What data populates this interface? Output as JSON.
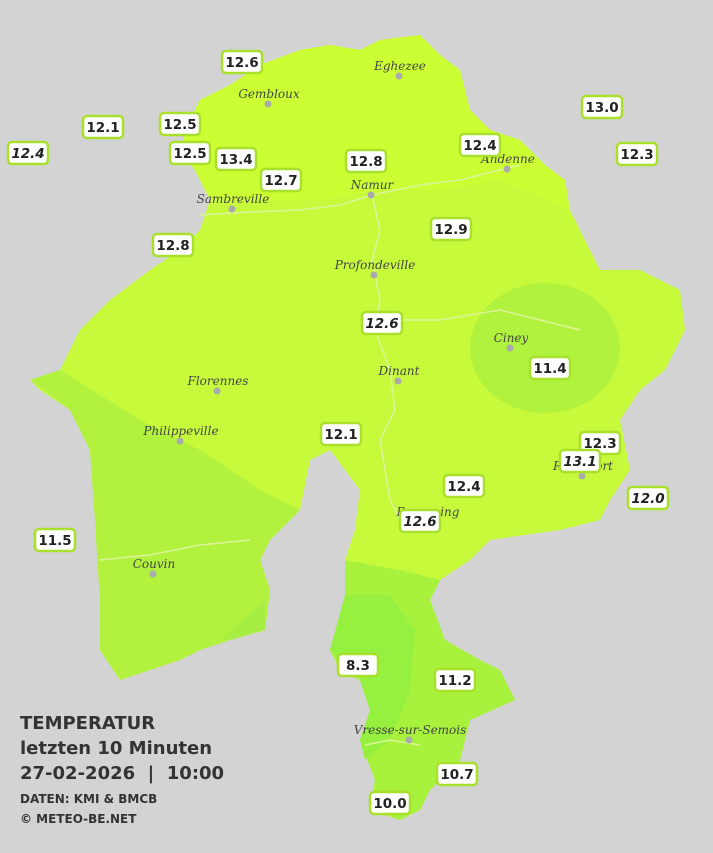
{
  "legend": {
    "title": "TEMPERATUR",
    "period": "letzten 10 Minuten",
    "datetime": "27-02-2026  |  10:00",
    "source": "DATEN: KMI & BMCB",
    "copyright": "© METEO-BE.NET"
  },
  "towns": [
    "Eghezee",
    "Gembloux",
    "Andenne",
    "Namur",
    "Sambreville",
    "Profondeville",
    "Ciney",
    "Florennes",
    "Dinant",
    "Philippeville",
    "Rochefort",
    "Beauraing",
    "Couvin",
    "Vresse-sur-Semois"
  ],
  "stations": [
    "12.6",
    "12.1",
    "12.4",
    "12.5",
    "12.5",
    "13.4",
    "12.7",
    "12.8",
    "12.4",
    "13.0",
    "12.3",
    "12.8",
    "12.9",
    "12.6",
    "11.4",
    "12.1",
    "12.3",
    "13.1",
    "12.0",
    "12.4",
    "12.6",
    "11.5",
    "8.3",
    "11.2",
    "10.7",
    "10.0"
  ]
}
